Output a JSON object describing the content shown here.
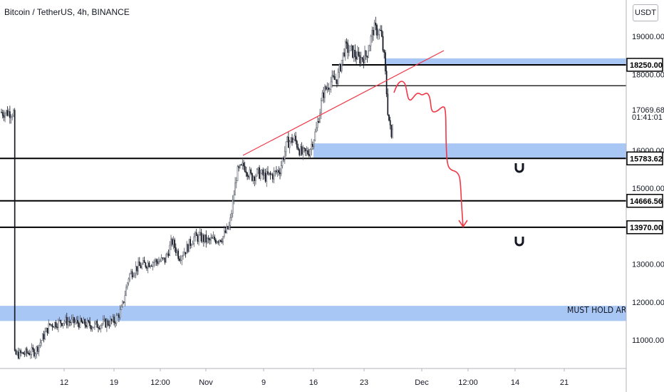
{
  "header": {
    "title": "Bitcoin / TetherUS, 4h, BINANCE",
    "currency": "USDT"
  },
  "chart_data": {
    "type": "candlestick",
    "title": "Bitcoin / TetherUS, 4h, BINANCE",
    "ylim": [
      10400,
      19700
    ],
    "y_ticks": [
      {
        "value": 19000,
        "label": "19000.00"
      },
      {
        "value": 18000,
        "label": "18000.00"
      },
      {
        "value": 16000,
        "label": "16000.00"
      },
      {
        "value": 15000,
        "label": "15000.00"
      },
      {
        "value": 13000,
        "label": "13000.00"
      },
      {
        "value": 12000,
        "label": "12000.00"
      },
      {
        "value": 11000,
        "label": "11000.00"
      }
    ],
    "x_ticks": [
      "12",
      "19",
      "12:00",
      "Nov",
      "9",
      "16",
      "23",
      "Dec",
      "12:00",
      "14",
      "21"
    ],
    "price_labels": [
      {
        "value": 18250,
        "label": "18250.00",
        "style": "boxed"
      },
      {
        "value": 17069.68,
        "label": "17069.68",
        "style": "plain"
      },
      {
        "value": 16880,
        "label": "01:41:01",
        "style": "plain"
      },
      {
        "value": 15783.62,
        "label": "15783.62",
        "style": "boxed"
      },
      {
        "value": 14666.56,
        "label": "14666.56",
        "style": "boxed"
      },
      {
        "value": 13970,
        "label": "13970.00",
        "style": "boxed"
      }
    ],
    "horizontal_levels": [
      {
        "value": 18250,
        "color": "#000000",
        "width": 2
      },
      {
        "value": 17700,
        "color": "#000000",
        "width": 1.3
      },
      {
        "value": 15783.62,
        "color": "#000000",
        "width": 2
      },
      {
        "value": 14666.56,
        "color": "#000000",
        "width": 2
      },
      {
        "value": 13970,
        "color": "#000000",
        "width": 2
      }
    ],
    "zones": [
      {
        "from": 18250,
        "to": 18420,
        "color": "#a9c7f5",
        "start_x": "27"
      },
      {
        "from": 15800,
        "to": 16180,
        "color": "#a9c7f5",
        "start_x": "16"
      },
      {
        "from": 11500,
        "to": 11900,
        "color": "#a9c7f5",
        "start_x": "start"
      }
    ],
    "annotations": [
      {
        "text": "MUST HOLD ARE"
      }
    ],
    "projection_color": "#f23645",
    "trendline_color": "#f23645",
    "close_price_points": [
      [
        "5 Oct",
        10600
      ],
      [
        "8 Oct",
        10700
      ],
      [
        "10 Oct",
        11400
      ],
      [
        "12 Oct",
        11500
      ],
      [
        "14 Oct",
        11450
      ],
      [
        "16 Oct",
        11380
      ],
      [
        "18 Oct",
        11450
      ],
      [
        "19 Oct",
        11500
      ],
      [
        "20 Oct",
        11800
      ],
      [
        "21 Oct",
        12700
      ],
      [
        "22 Oct",
        12900
      ],
      [
        "24 Oct",
        13050
      ],
      [
        "26 Oct",
        13100
      ],
      [
        "27 Oct",
        13600
      ],
      [
        "28 Oct",
        13200
      ],
      [
        "29 Oct",
        13400
      ],
      [
        "30 Oct",
        13700
      ],
      [
        "31 Oct",
        13700
      ],
      [
        "1 Nov",
        13600
      ],
      [
        "3 Nov",
        13700
      ],
      [
        "4 Nov",
        14000
      ],
      [
        "5 Nov",
        15400
      ],
      [
        "6 Nov",
        15600
      ],
      [
        "7 Nov",
        15300
      ],
      [
        "8 Nov",
        15400
      ],
      [
        "9 Nov",
        15300
      ],
      [
        "10 Nov",
        15350
      ],
      [
        "11 Nov",
        15500
      ],
      [
        "12 Nov",
        16200
      ],
      [
        "13 Nov",
        16300
      ],
      [
        "14 Nov",
        15900
      ],
      [
        "15 Nov",
        15950
      ],
      [
        "16 Nov",
        16500
      ],
      [
        "17 Nov",
        17500
      ],
      [
        "18 Nov",
        17800
      ],
      [
        "19 Nov",
        17900
      ],
      [
        "20 Nov",
        18700
      ],
      [
        "21 Nov",
        18600
      ],
      [
        "22 Nov",
        18400
      ],
      [
        "23 Nov",
        18500
      ],
      [
        "24 Nov",
        19200
      ],
      [
        "25 Nov",
        19100
      ],
      [
        "25.5 Nov",
        18400
      ],
      [
        "26 Nov",
        17000
      ],
      [
        "26.5 Nov",
        16300
      ],
      [
        "26.8 Nov",
        17000
      ]
    ]
  }
}
